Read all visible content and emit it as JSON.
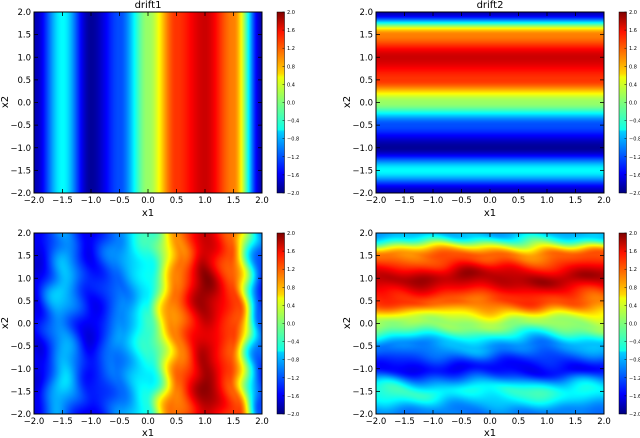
{
  "chart_data": [
    {
      "type": "heatmap",
      "title": "drift1",
      "xlabel": "x1",
      "ylabel": "x2",
      "xlim": [
        -2.0,
        2.0
      ],
      "ylim": [
        -2.0,
        2.0
      ],
      "xticks": [
        "−2.0",
        "−1.5",
        "−1.0",
        "−0.5",
        "0.0",
        "0.5",
        "1.0",
        "1.5",
        "2.0"
      ],
      "yticks": [
        "2.0",
        "1.5",
        "1.0",
        "0.5",
        "0.0",
        "−0.5",
        "−1.0",
        "−1.5",
        "−2.0"
      ],
      "colorbar": {
        "range": [
          -2.0,
          2.0
        ],
        "ticks": [
          "2.0",
          "1.6",
          "1.2",
          "0.8",
          "0.4",
          "0.0",
          "−0.4",
          "−0.8",
          "−1.2",
          "−1.6",
          "−2.0"
        ]
      },
      "colormap": "jet",
      "axis_of_variation": "x1",
      "profile": [
        [
          -2.0,
          -1.8
        ],
        [
          -1.5,
          -0.5
        ],
        [
          -1.0,
          -1.9
        ],
        [
          -0.5,
          -1.2
        ],
        [
          0.0,
          0.1
        ],
        [
          0.5,
          1.3
        ],
        [
          1.0,
          1.7
        ],
        [
          1.5,
          1.0
        ],
        [
          2.0,
          -1.8
        ]
      ],
      "noise": 0.0
    },
    {
      "type": "heatmap",
      "title": "drift2",
      "xlabel": "x1",
      "ylabel": "x2",
      "xlim": [
        -2.0,
        2.0
      ],
      "ylim": [
        -2.0,
        2.0
      ],
      "xticks": [
        "−2.0",
        "−1.5",
        "−1.0",
        "−0.5",
        "0.0",
        "0.5",
        "1.0",
        "1.5",
        "2.0"
      ],
      "yticks": [
        "2.0",
        "1.5",
        "1.0",
        "0.5",
        "0.0",
        "−0.5",
        "−1.0",
        "−1.5",
        "−2.0"
      ],
      "colorbar": {
        "range": [
          -2.0,
          2.0
        ],
        "ticks": [
          "2.0",
          "1.6",
          "1.2",
          "0.8",
          "0.4",
          "0.0",
          "−0.4",
          "−0.8",
          "−1.2",
          "−1.6",
          "−2.0"
        ]
      },
      "colormap": "jet",
      "axis_of_variation": "x2",
      "profile": [
        [
          -2.0,
          -1.8
        ],
        [
          -1.5,
          -0.5
        ],
        [
          -1.0,
          -1.9
        ],
        [
          -0.5,
          -1.2
        ],
        [
          0.0,
          0.1
        ],
        [
          0.5,
          1.3
        ],
        [
          1.0,
          1.7
        ],
        [
          1.5,
          1.0
        ],
        [
          2.0,
          -1.8
        ]
      ],
      "noise": 0.0
    },
    {
      "type": "heatmap",
      "title": "",
      "xlabel": "x1",
      "ylabel": "x2",
      "xlim": [
        -2.0,
        2.0
      ],
      "ylim": [
        -2.0,
        2.0
      ],
      "xticks": [
        "−2.0",
        "−1.5",
        "−1.0",
        "−0.5",
        "0.0",
        "0.5",
        "1.0",
        "1.5",
        "2.0"
      ],
      "yticks": [
        "2.0",
        "1.5",
        "1.0",
        "0.5",
        "0.0",
        "−0.5",
        "−1.0",
        "−1.5",
        "−2.0"
      ],
      "colorbar": {
        "range": [
          -2.0,
          2.0
        ],
        "ticks": [
          "2.0",
          "1.6",
          "1.2",
          "0.8",
          "0.4",
          "0.0",
          "−0.4",
          "−0.8",
          "−1.2",
          "−1.6",
          "−2.0"
        ]
      },
      "colormap": "jet",
      "axis_of_variation": "x1",
      "profile": [
        [
          -2.0,
          -1.6
        ],
        [
          -1.5,
          -0.8
        ],
        [
          -1.0,
          -1.5
        ],
        [
          -0.5,
          -1.0
        ],
        [
          0.0,
          -0.4
        ],
        [
          0.5,
          1.0
        ],
        [
          1.0,
          1.8
        ],
        [
          1.5,
          1.2
        ],
        [
          2.0,
          -1.2
        ]
      ],
      "noise": 0.35
    },
    {
      "type": "heatmap",
      "title": "",
      "xlabel": "x1",
      "ylabel": "x2",
      "xlim": [
        -2.0,
        2.0
      ],
      "ylim": [
        -2.0,
        2.0
      ],
      "xticks": [
        "−2.0",
        "−1.5",
        "−1.0",
        "−0.5",
        "0.0",
        "0.5",
        "1.0",
        "1.5",
        "2.0"
      ],
      "yticks": [
        "2.0",
        "1.5",
        "1.0",
        "0.5",
        "0.0",
        "−0.5",
        "−1.0",
        "−1.5",
        "−2.0"
      ],
      "colorbar": {
        "range": [
          -2.0,
          2.0
        ],
        "ticks": [
          "2.0",
          "1.6",
          "1.2",
          "0.8",
          "0.4",
          "0.0",
          "−0.4",
          "−0.8",
          "−1.2",
          "−1.6",
          "−2.0"
        ]
      },
      "colormap": "jet",
      "axis_of_variation": "x2",
      "profile": [
        [
          -2.0,
          -1.0
        ],
        [
          -1.5,
          -0.4
        ],
        [
          -1.0,
          -1.5
        ],
        [
          -0.5,
          -0.9
        ],
        [
          0.0,
          0.1
        ],
        [
          0.5,
          1.2
        ],
        [
          1.0,
          1.8
        ],
        [
          1.5,
          1.1
        ],
        [
          2.0,
          -0.8
        ]
      ],
      "noise": 0.35
    }
  ]
}
